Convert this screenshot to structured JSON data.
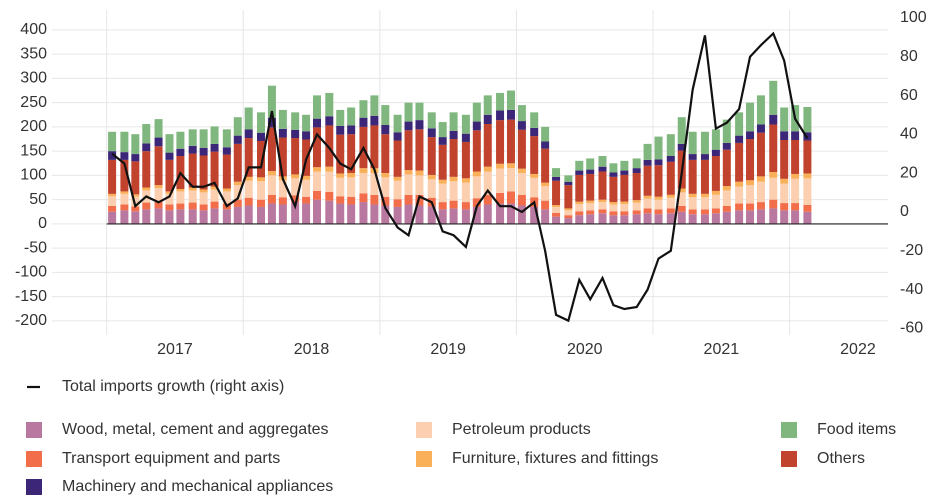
{
  "chart_data": {
    "type": "bar",
    "stacked": true,
    "xlim": [
      2016.6,
      2022.72
    ],
    "xticks": [
      2017,
      2018,
      2019,
      2020,
      2021,
      2022
    ],
    "x": [
      2017.04,
      2017.13,
      2017.21,
      2017.29,
      2017.38,
      2017.46,
      2017.54,
      2017.63,
      2017.71,
      2017.79,
      2017.88,
      2017.96,
      2018.04,
      2018.13,
      2018.21,
      2018.29,
      2018.38,
      2018.46,
      2018.54,
      2018.63,
      2018.71,
      2018.79,
      2018.88,
      2018.96,
      2019.04,
      2019.13,
      2019.21,
      2019.29,
      2019.38,
      2019.46,
      2019.54,
      2019.63,
      2019.71,
      2019.79,
      2019.88,
      2019.96,
      2020.04,
      2020.13,
      2020.21,
      2020.29,
      2020.38,
      2020.46,
      2020.54,
      2020.63,
      2020.71,
      2020.79,
      2020.88,
      2020.96,
      2021.04,
      2021.13,
      2021.21,
      2021.29,
      2021.38,
      2021.46,
      2021.54,
      2021.63,
      2021.71,
      2021.79,
      2021.88,
      2021.96,
      2022.04,
      2022.13
    ],
    "ylim": [
      -229,
      441
    ],
    "yticks": [
      -200,
      -150,
      -100,
      -50,
      0,
      50,
      100,
      150,
      200,
      250,
      300,
      350,
      400
    ],
    "y2lim": [
      -63.4,
      104.1
    ],
    "y2ticks": [
      -60,
      -40,
      -20,
      0,
      20,
      40,
      60,
      80,
      100
    ],
    "grid": true,
    "series": [
      {
        "name": "Wood, metal, cement and aggregates",
        "color": "#b9789f",
        "values": [
          25,
          28,
          26,
          30,
          32,
          28,
          30,
          30,
          28,
          32,
          30,
          35,
          38,
          35,
          42,
          40,
          45,
          42,
          50,
          48,
          42,
          40,
          45,
          40,
          38,
          35,
          40,
          38,
          36,
          30,
          32,
          30,
          35,
          40,
          42,
          42,
          38,
          35,
          30,
          15,
          12,
          18,
          20,
          22,
          18,
          18,
          20,
          22,
          20,
          22,
          25,
          20,
          20,
          22,
          25,
          28,
          28,
          30,
          32,
          28,
          28,
          25
        ]
      },
      {
        "name": "Transport equipment and parts",
        "color": "#f26e4a",
        "values": [
          12,
          12,
          10,
          14,
          14,
          12,
          12,
          14,
          12,
          14,
          12,
          15,
          16,
          15,
          18,
          15,
          14,
          14,
          18,
          18,
          15,
          16,
          18,
          20,
          18,
          16,
          20,
          22,
          18,
          15,
          16,
          15,
          18,
          20,
          22,
          25,
          22,
          20,
          18,
          8,
          6,
          8,
          8,
          8,
          8,
          8,
          8,
          10,
          10,
          10,
          12,
          10,
          10,
          10,
          12,
          14,
          14,
          15,
          18,
          15,
          15,
          14
        ]
      },
      {
        "name": "Petroleum products",
        "color": "#fccfb0",
        "values": [
          20,
          22,
          20,
          25,
          28,
          22,
          25,
          25,
          25,
          25,
          25,
          30,
          35,
          38,
          40,
          35,
          35,
          35,
          40,
          42,
          38,
          40,
          42,
          45,
          40,
          38,
          42,
          40,
          38,
          38,
          40,
          40,
          45,
          48,
          50,
          48,
          45,
          40,
          30,
          12,
          10,
          15,
          15,
          15,
          14,
          15,
          16,
          20,
          20,
          22,
          28,
          25,
          25,
          28,
          32,
          35,
          38,
          42,
          45,
          40,
          50,
          55
        ]
      },
      {
        "name": "Furniture, fixtures and fittings",
        "color": "#f9b058",
        "values": [
          5,
          5,
          5,
          6,
          6,
          5,
          5,
          6,
          6,
          6,
          6,
          7,
          8,
          8,
          9,
          8,
          8,
          8,
          9,
          10,
          9,
          9,
          10,
          10,
          9,
          8,
          9,
          10,
          9,
          8,
          9,
          9,
          10,
          10,
          10,
          10,
          9,
          8,
          7,
          4,
          4,
          5,
          5,
          5,
          5,
          5,
          5,
          6,
          6,
          6,
          8,
          7,
          7,
          8,
          9,
          10,
          10,
          11,
          12,
          10,
          10,
          10
        ]
      },
      {
        "name": "Others",
        "color": "#c1432e",
        "values": [
          70,
          65,
          68,
          75,
          80,
          65,
          68,
          70,
          70,
          72,
          70,
          78,
          80,
          75,
          90,
          80,
          75,
          75,
          82,
          85,
          80,
          80,
          85,
          88,
          80,
          75,
          82,
          85,
          78,
          72,
          78,
          75,
          85,
          88,
          90,
          90,
          80,
          78,
          70,
          50,
          48,
          55,
          55,
          58,
          52,
          55,
          56,
          62,
          65,
          68,
          78,
          70,
          70,
          72,
          75,
          80,
          85,
          90,
          98,
          80,
          70,
          68
        ]
      },
      {
        "name": "Machinery and mechanical appliances",
        "color": "#3b2677",
        "values": [
          18,
          16,
          15,
          16,
          18,
          15,
          15,
          16,
          16,
          16,
          15,
          17,
          18,
          17,
          20,
          18,
          17,
          17,
          18,
          19,
          18,
          18,
          19,
          20,
          19,
          17,
          18,
          19,
          18,
          16,
          17,
          17,
          18,
          19,
          20,
          20,
          18,
          17,
          15,
          8,
          7,
          9,
          9,
          10,
          9,
          9,
          10,
          12,
          12,
          12,
          14,
          12,
          12,
          13,
          14,
          15,
          16,
          17,
          20,
          18,
          18,
          17
        ]
      },
      {
        "name": "Food items",
        "color": "#7fb77e",
        "values": [
          40,
          42,
          41,
          40,
          38,
          38,
          35,
          34,
          38,
          36,
          37,
          38,
          45,
          42,
          66,
          39,
          36,
          34,
          48,
          48,
          33,
          37,
          36,
          42,
          41,
          36,
          39,
          36,
          33,
          31,
          38,
          39,
          39,
          40,
          36,
          40,
          33,
          32,
          30,
          18,
          13,
          20,
          23,
          22,
          19,
          20,
          20,
          33,
          47,
          45,
          55,
          46,
          46,
          42,
          48,
          48,
          59,
          60,
          70,
          49,
          54,
          52
        ]
      },
      {
        "name": "Total imports growth (right axis)",
        "type": "line",
        "axis": "y2",
        "color": "#111111",
        "values": [
          30,
          25,
          3,
          8,
          5,
          8,
          20,
          13,
          13,
          15,
          3,
          7,
          23,
          23,
          52,
          17,
          3,
          27,
          40,
          33,
          25,
          22,
          33,
          22,
          2,
          -8,
          -12,
          8,
          5,
          -10,
          -12,
          -18,
          3,
          11,
          3,
          3,
          0,
          5,
          -20,
          -53,
          -56,
          -35,
          -45,
          -34,
          -48,
          -50,
          -49,
          -40,
          -24,
          -20,
          20,
          63,
          91,
          43,
          46,
          53,
          80,
          86,
          92,
          78,
          48,
          38
        ]
      }
    ]
  }
}
